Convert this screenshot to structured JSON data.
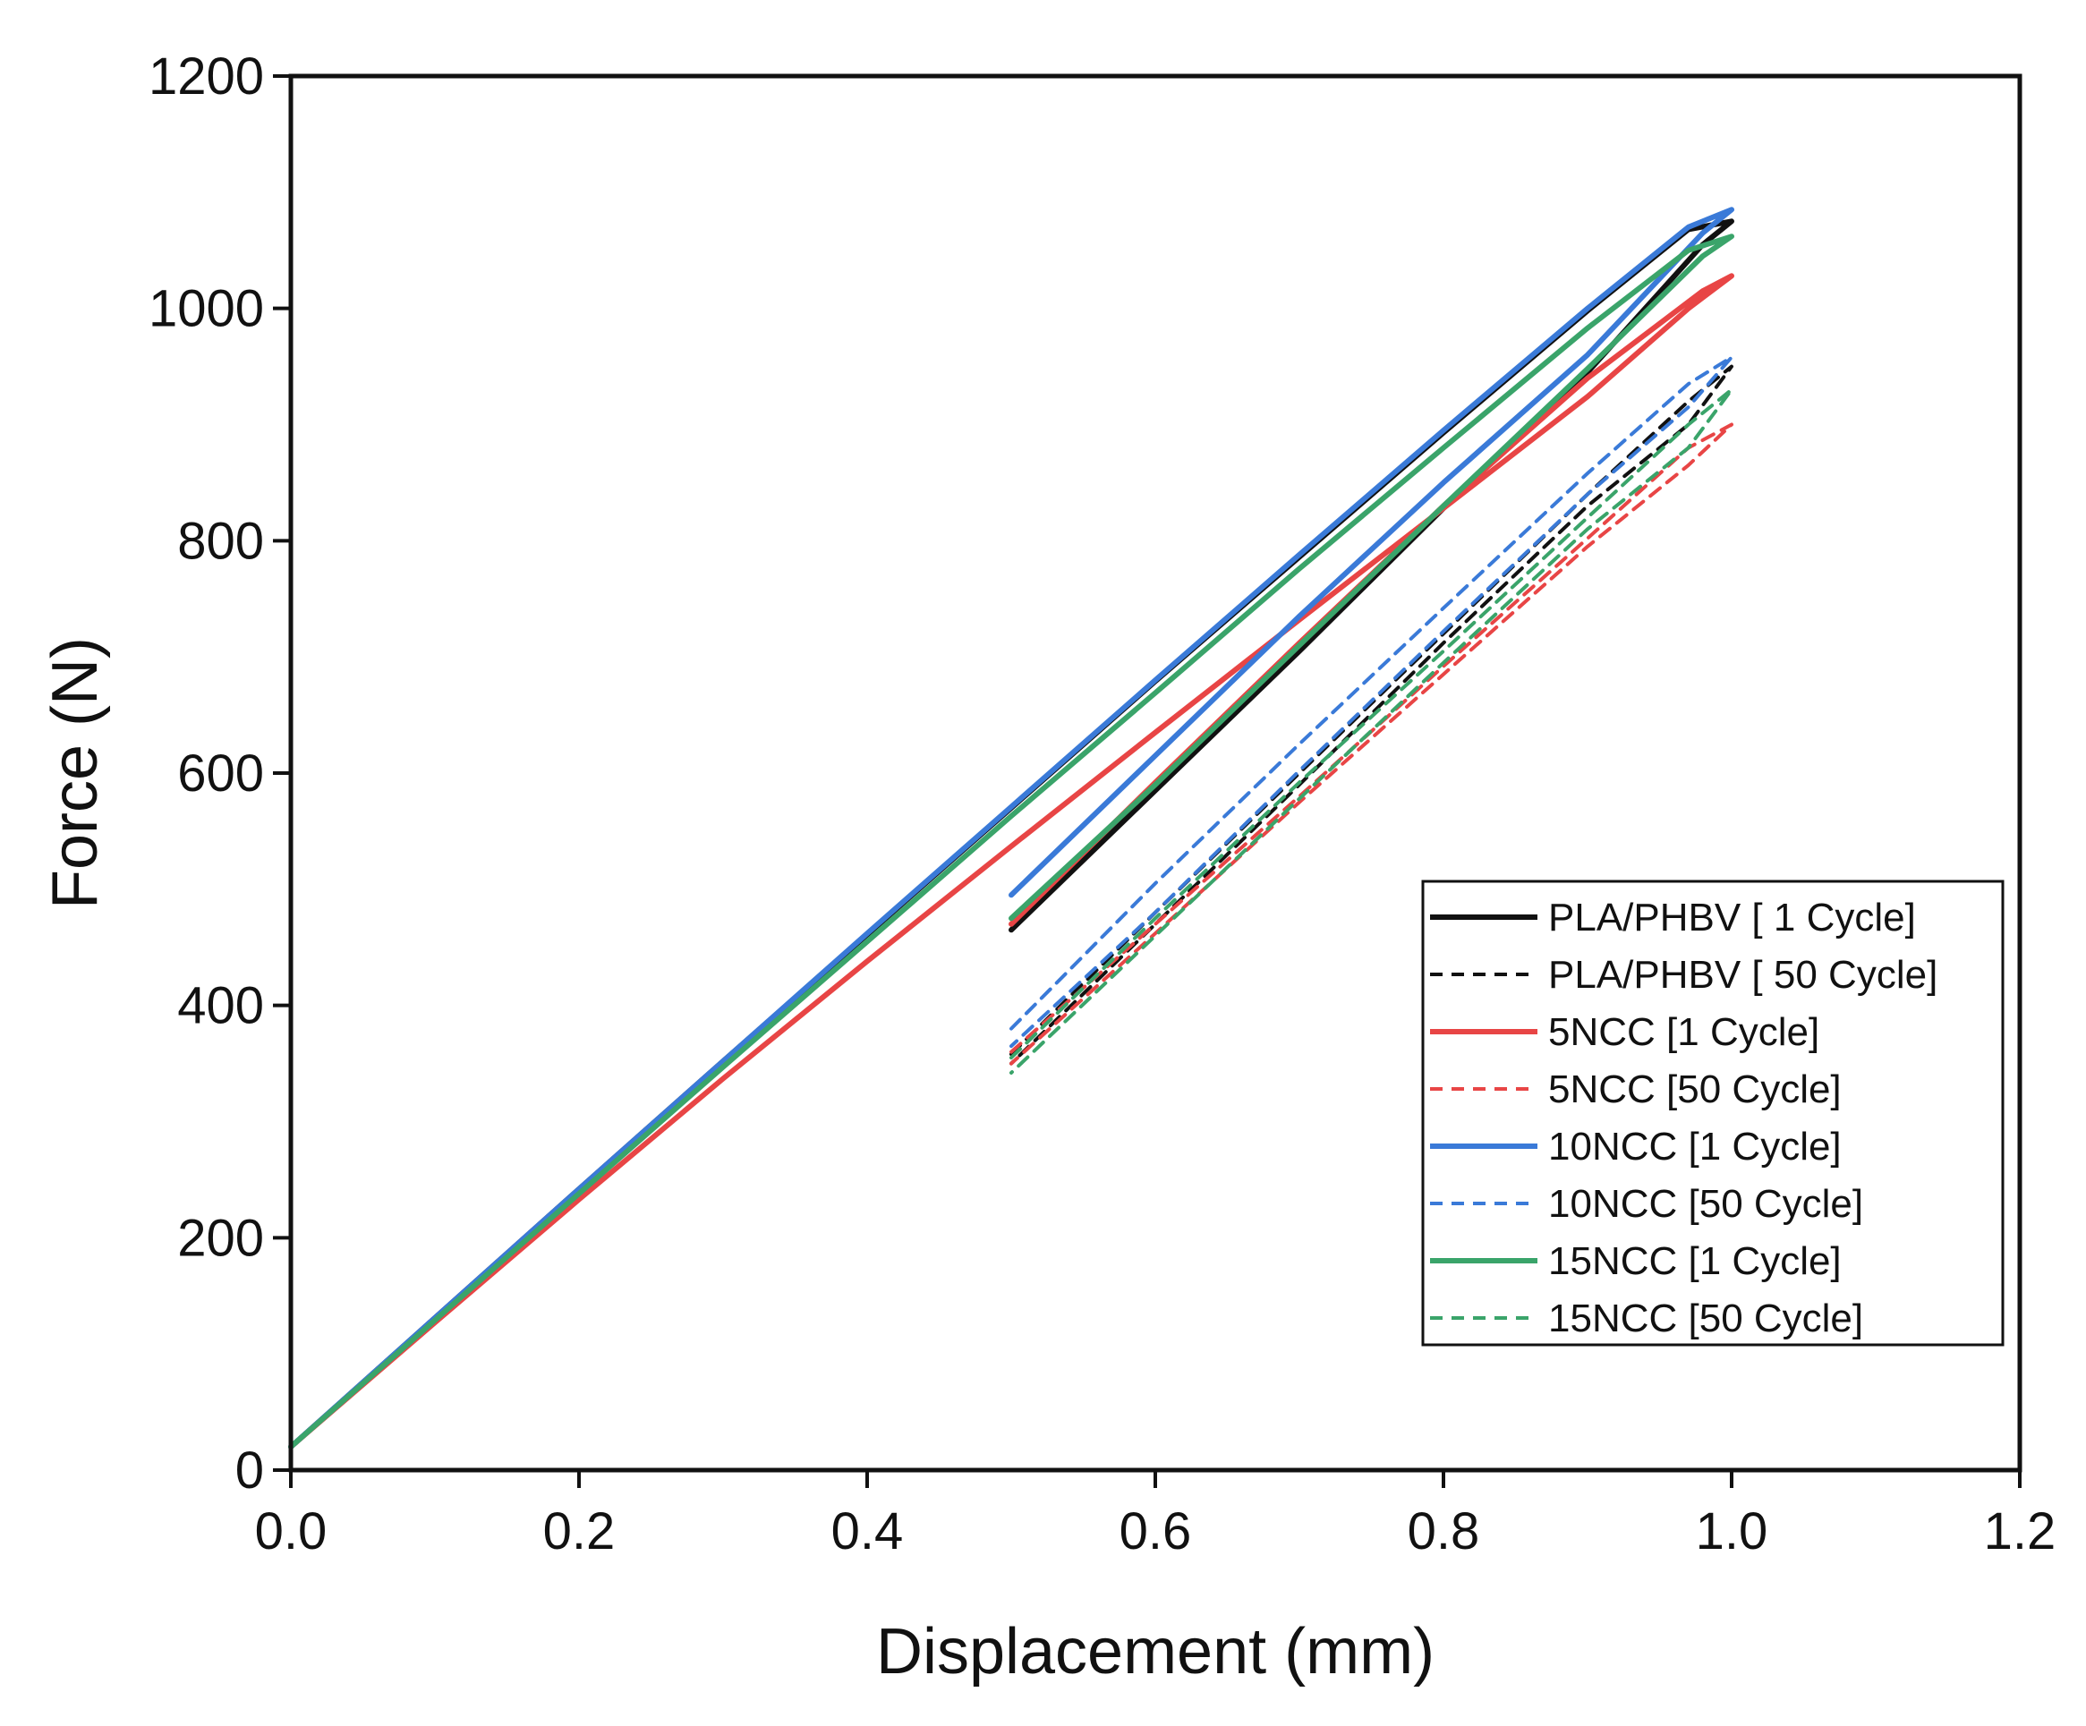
{
  "chart_data": {
    "type": "line",
    "title": "",
    "xlabel": "Displacement (mm)",
    "ylabel": "Force (N)",
    "xlim": [
      0.0,
      1.2
    ],
    "ylim": [
      0,
      1200
    ],
    "xticks": [
      0.0,
      0.2,
      0.4,
      0.6,
      0.8,
      1.0,
      1.2
    ],
    "xtick_labels": [
      "0.0",
      "0.2",
      "0.4",
      "0.6",
      "0.8",
      "1.0",
      "1.2"
    ],
    "yticks": [
      0,
      200,
      400,
      600,
      800,
      1000,
      1200
    ],
    "ytick_labels": [
      "0",
      "200",
      "400",
      "600",
      "800",
      "1000",
      "1200"
    ],
    "grid": false,
    "legend_position": "bottom-right",
    "series": [
      {
        "name": "PLA/PHBV [ 1 Cycle]",
        "color": "#111111",
        "dash": "solid",
        "x": [
          0.0,
          0.1,
          0.2,
          0.3,
          0.4,
          0.5,
          0.6,
          0.7,
          0.8,
          0.9,
          0.97,
          1.0,
          0.98,
          0.9,
          0.8,
          0.7,
          0.6,
          0.5
        ],
        "y": [
          20,
          131,
          242,
          352,
          461,
          570,
          679,
          786,
          893,
          998,
          1068,
          1075,
          1055,
          945,
          828,
          705,
          585,
          465
        ]
      },
      {
        "name": "PLA/PHBV [ 50 Cycle]",
        "color": "#111111",
        "dash": "dashed",
        "x": [
          0.5,
          0.6,
          0.7,
          0.8,
          0.9,
          0.97,
          1.0,
          0.97,
          0.9,
          0.8,
          0.7,
          0.6,
          0.5
        ],
        "y": [
          358,
          480,
          600,
          720,
          840,
          920,
          950,
          900,
          830,
          712,
          590,
          470,
          350
        ]
      },
      {
        "name": "5NCC [1 Cycle]",
        "color": "#e84545",
        "dash": "solid",
        "x": [
          0.0,
          0.1,
          0.2,
          0.3,
          0.4,
          0.5,
          0.6,
          0.7,
          0.8,
          0.9,
          0.97,
          1.0,
          0.98,
          0.9,
          0.8,
          0.7,
          0.6,
          0.5
        ],
        "y": [
          20,
          127,
          233,
          337,
          438,
          537,
          635,
          732,
          828,
          924,
          1000,
          1028,
          1015,
          940,
          830,
          712,
          592,
          470
        ]
      },
      {
        "name": "5NCC [50 Cycle]",
        "color": "#e84545",
        "dash": "dashed",
        "x": [
          0.5,
          0.6,
          0.7,
          0.8,
          0.9,
          0.97,
          1.0,
          0.97,
          0.9,
          0.8,
          0.7,
          0.6,
          0.5
        ],
        "y": [
          360,
          470,
          580,
          692,
          802,
          880,
          900,
          865,
          795,
          685,
          575,
          462,
          350
        ]
      },
      {
        "name": "10NCC [1 Cycle]",
        "color": "#3a7ad8",
        "dash": "solid",
        "x": [
          0.0,
          0.1,
          0.2,
          0.3,
          0.4,
          0.5,
          0.6,
          0.7,
          0.8,
          0.9,
          0.97,
          1.0,
          0.98,
          0.9,
          0.8,
          0.7,
          0.6,
          0.5
        ],
        "y": [
          20,
          131,
          242,
          352,
          462,
          571,
          680,
          788,
          895,
          1000,
          1070,
          1085,
          1065,
          960,
          850,
          735,
          615,
          495
        ]
      },
      {
        "name": "10NCC [50 Cycle]",
        "color": "#3a7ad8",
        "dash": "dashed",
        "x": [
          0.5,
          0.6,
          0.7,
          0.8,
          0.9,
          0.97,
          1.0,
          0.97,
          0.9,
          0.8,
          0.7,
          0.6,
          0.5
        ],
        "y": [
          380,
          505,
          625,
          742,
          858,
          935,
          958,
          915,
          840,
          722,
          602,
          480,
          365
        ]
      },
      {
        "name": "15NCC [1 Cycle]",
        "color": "#3aa46a",
        "dash": "solid",
        "x": [
          0.0,
          0.1,
          0.2,
          0.3,
          0.4,
          0.5,
          0.6,
          0.7,
          0.8,
          0.9,
          0.97,
          1.0,
          0.98,
          0.9,
          0.8,
          0.7,
          0.6,
          0.5
        ],
        "y": [
          20,
          129,
          238,
          347,
          455,
          563,
          669,
          776,
          880,
          983,
          1050,
          1062,
          1045,
          948,
          830,
          710,
          590,
          475
        ]
      },
      {
        "name": "15NCC [50 Cycle]",
        "color": "#3aa46a",
        "dash": "dashed",
        "x": [
          0.5,
          0.6,
          0.7,
          0.8,
          0.9,
          0.97,
          1.0,
          0.97,
          0.9,
          0.8,
          0.7,
          0.6,
          0.5
        ],
        "y": [
          355,
          475,
          592,
          705,
          820,
          900,
          930,
          880,
          810,
          695,
          578,
          460,
          342
        ]
      }
    ]
  }
}
